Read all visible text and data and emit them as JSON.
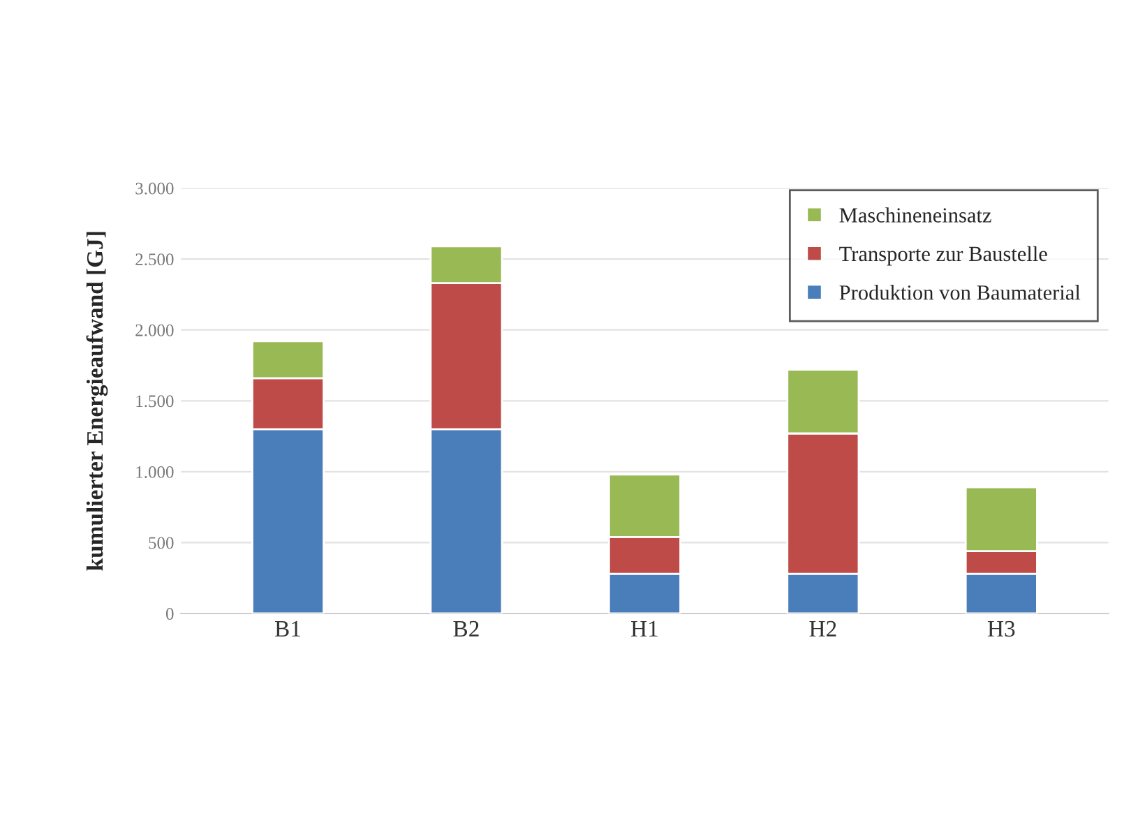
{
  "chart_data": {
    "type": "bar",
    "stacked": true,
    "ylabel": "kumulierter Energieaufwand [GJ]",
    "categories": [
      "B1",
      "B2",
      "H1",
      "H2",
      "H3"
    ],
    "series": [
      {
        "name": "Produktion von Baumaterial",
        "color": "#4a7ebb",
        "values": [
          1300,
          1300,
          280,
          280,
          280
        ]
      },
      {
        "name": "Transporte zur Baustelle",
        "color": "#be4b48",
        "values": [
          360,
          1030,
          260,
          990,
          160
        ]
      },
      {
        "name": "Maschineneinsatz",
        "color": "#98b954",
        "values": [
          260,
          260,
          440,
          450,
          450
        ]
      }
    ],
    "ylim": [
      0,
      3000
    ],
    "yticks": [
      {
        "value": 0,
        "label": "0"
      },
      {
        "value": 500,
        "label": "500"
      },
      {
        "value": 1000,
        "label": "1.000"
      },
      {
        "value": 1500,
        "label": "1.500"
      },
      {
        "value": 2000,
        "label": "2.000"
      },
      {
        "value": 2500,
        "label": "2.500"
      },
      {
        "value": 3000,
        "label": "3.000"
      }
    ],
    "grid": "y",
    "legend": "top right"
  }
}
